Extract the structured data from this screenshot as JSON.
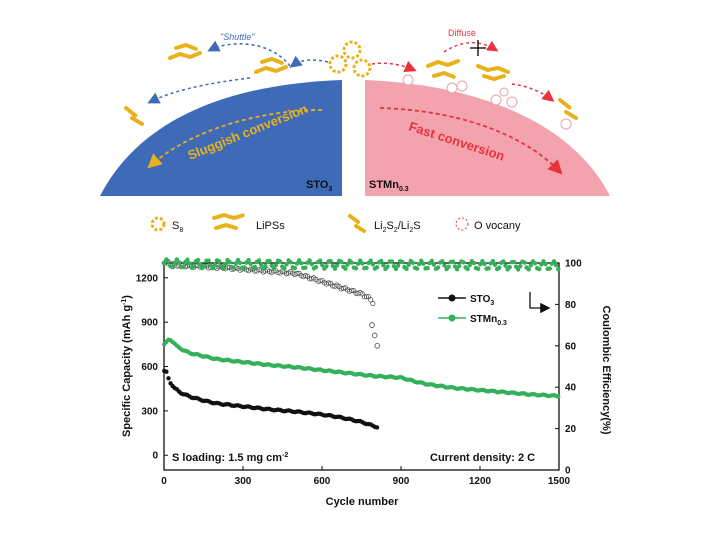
{
  "schematic": {
    "label_shuttle": "\"Shuttle\"",
    "label_diffuse": "Diffuse",
    "label_sluggish": "Sluggish conversion",
    "label_fast": "Fast conversion",
    "label_sto": "STO",
    "label_sto_sub": "3",
    "label_stmn": "STMn",
    "label_stmn_sub": "0.3",
    "colors": {
      "blue": "#3f6ab8",
      "pink": "#f2a3ad",
      "yellow": "#e7b21b",
      "red": "#e8323c"
    }
  },
  "species_legend": {
    "s8": {
      "text": "S",
      "sub": "8"
    },
    "lips": {
      "text": "LiPSs"
    },
    "li2s": {
      "t1": "Li",
      "s1": "2",
      "t2": "S",
      "s2": "2",
      "t3": "/Li",
      "s3": "2",
      "t4": "S"
    },
    "ovac": {
      "text": "O vocany"
    }
  },
  "chart_data": {
    "type": "scatter",
    "xlabel": "Cycle number",
    "ylabel_left": "Specific Capacity (mAh g",
    "ylabel_left_sup": "-1",
    "ylabel_left_close": ")",
    "ylabel_right": "Coulombic Efficiency(%)",
    "xlim": [
      0,
      1500
    ],
    "ylim_left": [
      -100,
      1300
    ],
    "ylim_right": [
      0,
      100
    ],
    "xticks": [
      0,
      300,
      600,
      900,
      1200,
      1500
    ],
    "yticks_left": [
      0,
      300,
      600,
      900,
      1200
    ],
    "yticks_right": [
      0,
      20,
      40,
      60,
      80,
      100
    ],
    "annotation_loading": "S loading: 1.5 mg cm",
    "annotation_loading_sup": "-2",
    "annotation_current": "Current density: 2 C",
    "legend_position": "top-right",
    "series": [
      {
        "name": "STO",
        "name_sub": "3",
        "axis": "left",
        "color": "#111111",
        "marker": "hexagon",
        "x": [
          1,
          10,
          20,
          40,
          60,
          80,
          100,
          150,
          200,
          250,
          300,
          350,
          400,
          450,
          500,
          550,
          600,
          650,
          700,
          750,
          800,
          810
        ],
        "y": [
          570,
          560,
          500,
          455,
          425,
          410,
          395,
          370,
          350,
          340,
          330,
          320,
          310,
          302,
          295,
          285,
          275,
          262,
          245,
          225,
          195,
          190
        ]
      },
      {
        "name": "STMn",
        "name_sub": "0.3",
        "axis": "left",
        "color": "#35b05a",
        "marker": "pentagon",
        "x": [
          1,
          10,
          20,
          30,
          50,
          80,
          100,
          150,
          200,
          300,
          400,
          500,
          600,
          700,
          800,
          850,
          900,
          950,
          1000,
          1100,
          1200,
          1300,
          1400,
          1500
        ],
        "y": [
          750,
          765,
          785,
          775,
          735,
          705,
          690,
          670,
          650,
          630,
          610,
          595,
          575,
          555,
          535,
          530,
          525,
          500,
          480,
          455,
          440,
          425,
          410,
          400
        ]
      },
      {
        "name": "STO3 Coulombic efficiency",
        "axis": "right",
        "color": "#444444",
        "marker": "hollow-circle",
        "x": [
          1,
          50,
          100,
          200,
          300,
          400,
          500,
          550,
          600,
          650,
          700,
          750,
          780,
          800
        ],
        "y": [
          100,
          99,
          98.5,
          98,
          97,
          96,
          95,
          93,
          91,
          89,
          87,
          85,
          83,
          80
        ],
        "drop_x": [
          790,
          800,
          810
        ],
        "drop_y": [
          70,
          65,
          60
        ]
      },
      {
        "name": "STMn0.3 Coulombic efficiency",
        "axis": "right",
        "color": "#35b05a",
        "marker": "pentagon",
        "x": [
          1,
          100,
          300,
          500,
          700,
          900,
          1100,
          1300,
          1500
        ],
        "y": [
          99.8,
          99.6,
          99.4,
          99.3,
          99.2,
          99.1,
          99.0,
          98.9,
          98.8
        ]
      }
    ]
  }
}
